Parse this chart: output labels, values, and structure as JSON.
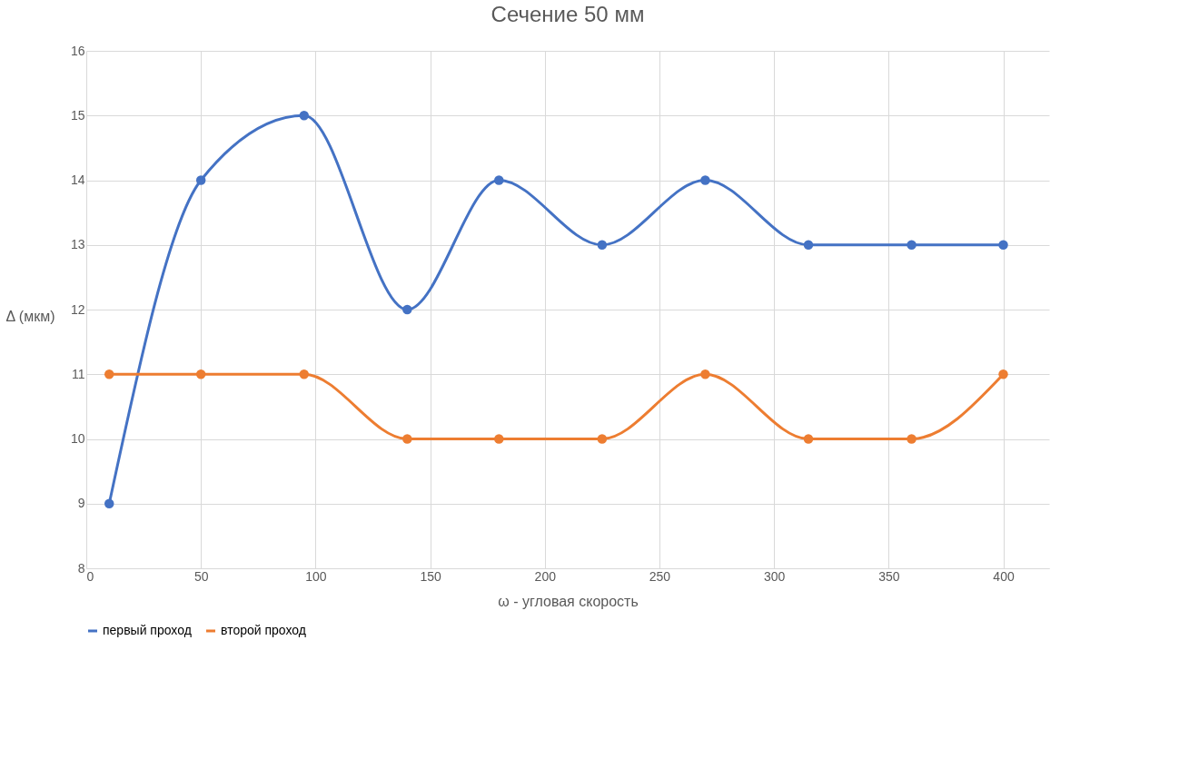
{
  "chart_data": {
    "type": "line",
    "title": "Сечение 50 мм",
    "xlabel": "ω - угловая скорость",
    "ylabel": "Δ (мкм)",
    "x": [
      10,
      50,
      95,
      140,
      180,
      225,
      270,
      315,
      360,
      400
    ],
    "series": [
      {
        "name": "первый проход",
        "color": "#4472c4",
        "values": [
          9,
          14,
          15,
          12,
          14,
          13,
          14,
          13,
          13,
          13
        ]
      },
      {
        "name": "второй проход",
        "color": "#ed7d31",
        "values": [
          11,
          11,
          11,
          10,
          10,
          10,
          11,
          10,
          10,
          11
        ]
      }
    ],
    "xlim": [
      0,
      420
    ],
    "xticks": [
      0,
      50,
      100,
      150,
      200,
      250,
      300,
      350,
      400
    ],
    "ylim": [
      8,
      16
    ],
    "yticks": [
      8,
      9,
      10,
      11,
      12,
      13,
      14,
      15,
      16
    ],
    "grid": true,
    "legend": "bottom",
    "marker": "circle",
    "line_style": "solid"
  }
}
